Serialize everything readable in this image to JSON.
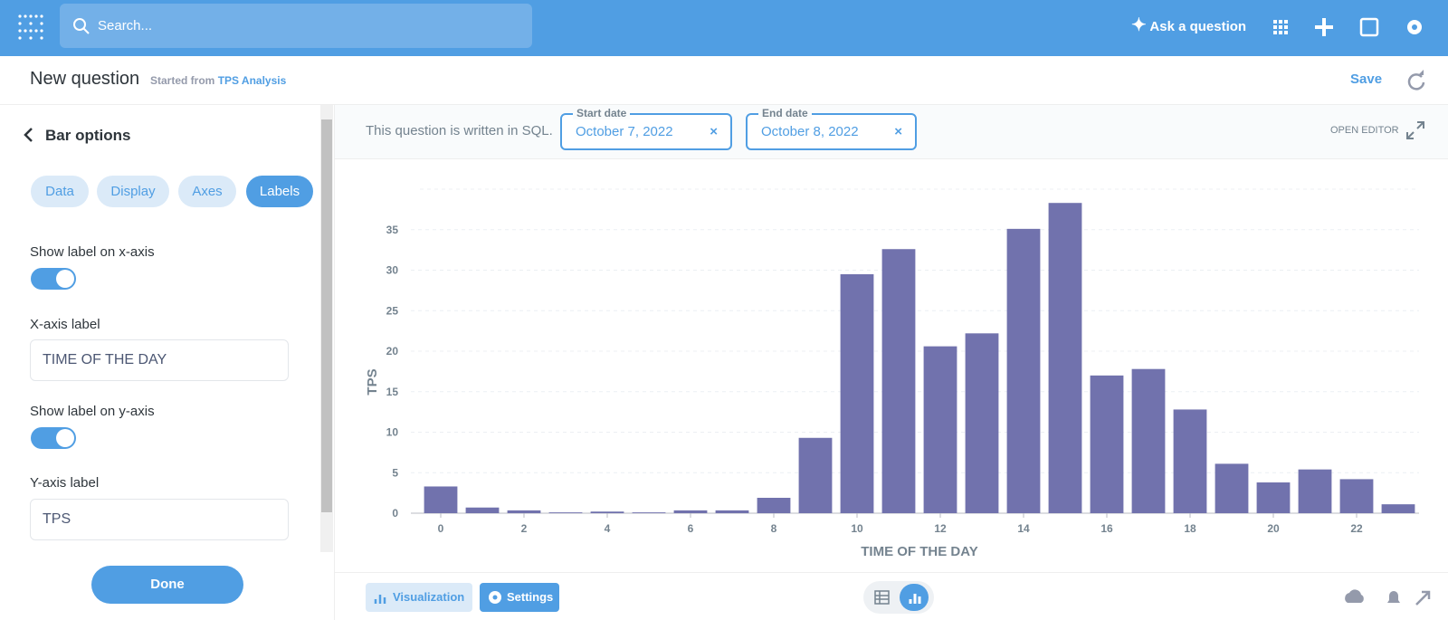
{
  "header": {
    "search_placeholder": "Search...",
    "ask": "Ask a question"
  },
  "question_bar": {
    "title": "New question",
    "started_from": "Started from",
    "source": "TPS Analysis",
    "save": "Save"
  },
  "sidebar": {
    "title": "Bar options",
    "tabs": [
      "Data",
      "Display",
      "Axes",
      "Labels"
    ],
    "active_tab": 3,
    "x_toggle_label": "Show label on x-axis",
    "x_label_title": "X-axis label",
    "x_label_value": "TIME OF THE DAY",
    "y_toggle_label": "Show label on y-axis",
    "y_label_title": "Y-axis label",
    "y_label_value": "TPS",
    "done": "Done"
  },
  "filters": {
    "sql_note": "This question is written in SQL.",
    "start_label": "Start date",
    "start_value": "October 7, 2022",
    "end_label": "End date",
    "end_value": "October 8, 2022",
    "open_editor": "OPEN EDITOR"
  },
  "footer": {
    "visualization": "Visualization",
    "settings": "Settings"
  },
  "chart_data": {
    "type": "bar",
    "x_label": "TIME OF THE DAY",
    "y_label": "TPS",
    "color": "#7172ad",
    "x": [
      0,
      1,
      2,
      3,
      4,
      5,
      6,
      7,
      8,
      9,
      10,
      11,
      12,
      13,
      14,
      15,
      16,
      17,
      18,
      19,
      20,
      21,
      22,
      23
    ],
    "values": [
      3.3,
      0.7,
      0.35,
      0.1,
      0.2,
      0.1,
      0.35,
      0.35,
      1.9,
      9.3,
      29.5,
      32.6,
      20.6,
      22.2,
      35.1,
      38.3,
      17.0,
      17.8,
      12.8,
      6.1,
      3.8,
      5.4,
      4.2,
      1.1
    ],
    "xlim": [
      -0.5,
      23.5
    ],
    "xticks": [
      0,
      2,
      4,
      6,
      8,
      10,
      12,
      14,
      16,
      18,
      20,
      22
    ],
    "ylim": [
      0,
      40
    ],
    "yticks": [
      0,
      5,
      10,
      15,
      20,
      25,
      30,
      35
    ],
    "grid": true
  }
}
